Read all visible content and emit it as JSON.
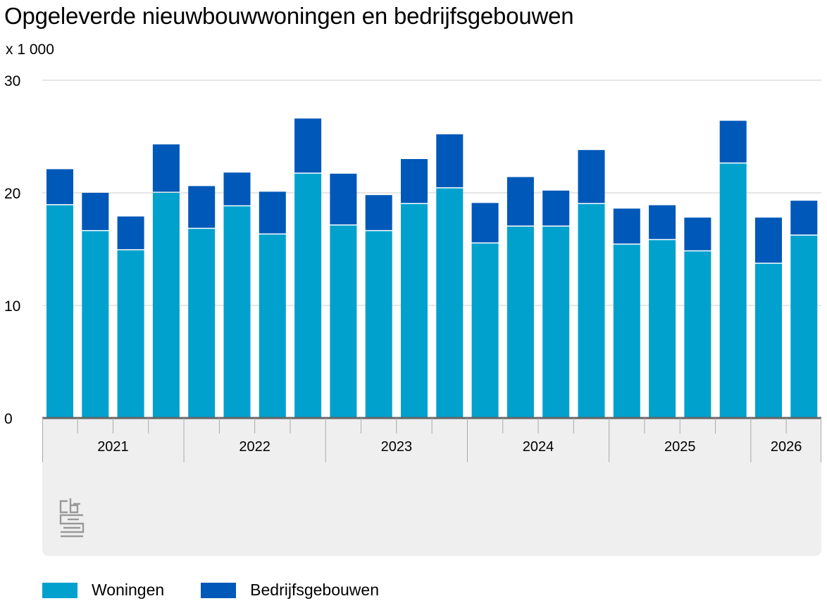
{
  "title": "Opgeleverde nieuwbouwwoningen en bedrijfsgebouwen",
  "unit_label": "x 1 000",
  "colors": {
    "woningen": "#00a1cd",
    "bedrijfsgebouwen": "#0058b8",
    "footer_band": "#efefef",
    "grid": "#cccccc",
    "axis": "#666666",
    "logo": "#999999"
  },
  "logo": {
    "name": "cbs-logo",
    "text": "cbs"
  },
  "chart_data": {
    "type": "bar",
    "stacked": true,
    "ylim": [
      0,
      30
    ],
    "yticks": [
      0,
      10,
      20,
      30
    ],
    "grid": true,
    "legend_position": "bottom-left",
    "year_groups": [
      {
        "label": "2021",
        "count": 4
      },
      {
        "label": "2022",
        "count": 4
      },
      {
        "label": "2023",
        "count": 4
      },
      {
        "label": "2024",
        "count": 4
      },
      {
        "label": "2025",
        "count": 4
      },
      {
        "label": "2026",
        "count": 2
      }
    ],
    "series": [
      {
        "name": "Woningen",
        "values": [
          18.9,
          16.6,
          14.9,
          20.0,
          16.8,
          18.8,
          16.3,
          21.7,
          17.1,
          16.6,
          19.0,
          20.4,
          15.5,
          17.0,
          17.0,
          19.0,
          15.4,
          15.8,
          14.8,
          22.6,
          13.7,
          16.2
        ]
      },
      {
        "name": "Bedrijfsgebouwen",
        "values": [
          3.2,
          3.4,
          3.0,
          4.3,
          3.8,
          3.0,
          3.8,
          4.9,
          4.6,
          3.2,
          4.0,
          4.8,
          3.6,
          4.4,
          3.2,
          4.8,
          3.2,
          3.1,
          3.0,
          3.8,
          4.1,
          3.1
        ]
      }
    ]
  }
}
